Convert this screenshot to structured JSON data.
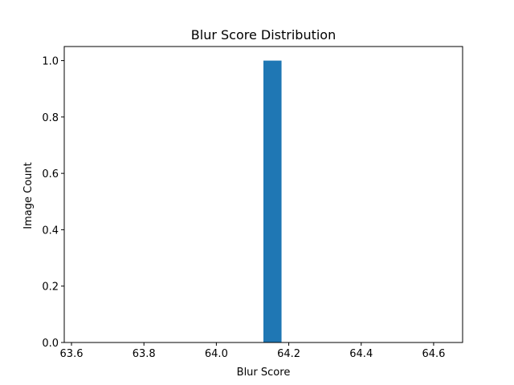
{
  "chart_data": {
    "type": "bar",
    "title": "Blur Score Distribution",
    "xlabel": "Blur Score",
    "ylabel": "Image Count",
    "xlim": [
      63.58,
      64.68
    ],
    "ylim": [
      0,
      1.05
    ],
    "x_ticks": [
      63.6,
      63.8,
      64.0,
      64.2,
      64.4,
      64.6
    ],
    "x_tick_labels": [
      "63.6",
      "63.8",
      "64.0",
      "64.2",
      "64.4",
      "64.6"
    ],
    "y_ticks": [
      0.0,
      0.2,
      0.4,
      0.6,
      0.8,
      1.0
    ],
    "y_tick_labels": [
      "0.0",
      "0.2",
      "0.4",
      "0.6",
      "0.8",
      "1.0"
    ],
    "bins": [
      {
        "x_start": 64.13,
        "x_end": 64.18,
        "value": 1
      }
    ],
    "bar_color": "#1f77b4",
    "grid": false,
    "legend": "none"
  }
}
